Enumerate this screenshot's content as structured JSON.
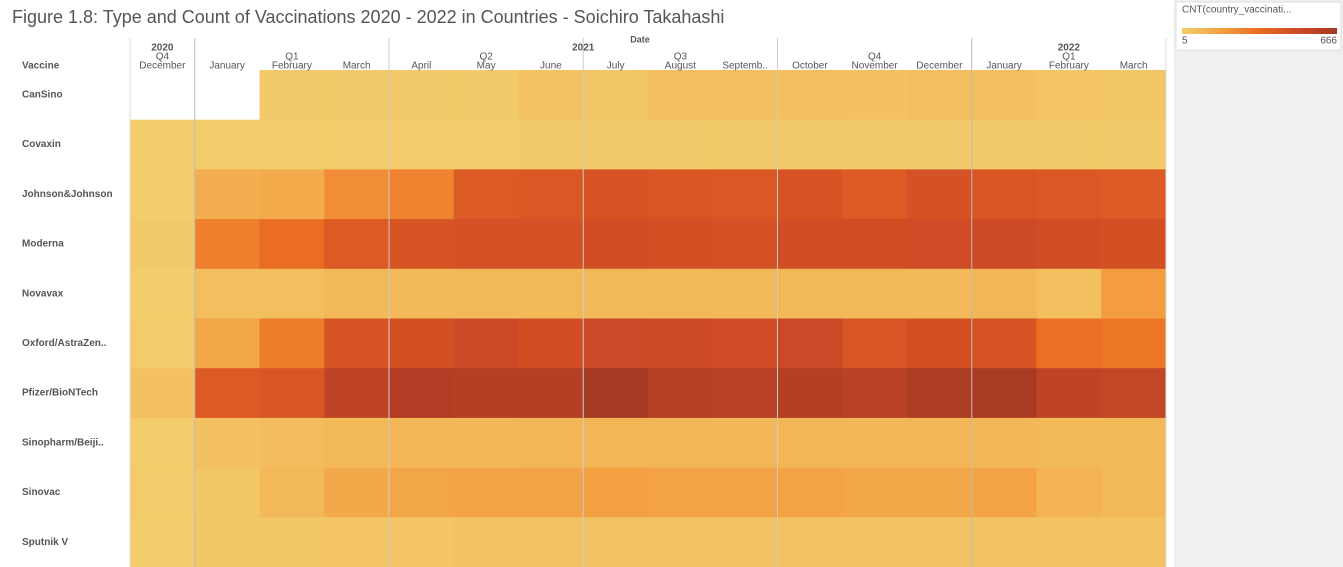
{
  "chart_data": {
    "type": "heatmap",
    "title": "Figure 1.8: Type and Count of Vaccinations 2020 - 2022  in Countries - Soichiro Takahashi",
    "x_label": "Date",
    "y_label": "Vaccine",
    "x_groups": [
      {
        "year": "2020",
        "quarters": [
          {
            "quarter": "Q4",
            "months": [
              "December"
            ]
          }
        ]
      },
      {
        "year": "2021",
        "quarters": [
          {
            "quarter": "Q1",
            "months": [
              "January",
              "February",
              "March"
            ]
          },
          {
            "quarter": "Q2",
            "months": [
              "April",
              "May",
              "June"
            ]
          },
          {
            "quarter": "Q3",
            "months": [
              "July",
              "August",
              "Septemb.."
            ]
          },
          {
            "quarter": "Q4",
            "months": [
              "October",
              "November",
              "December"
            ]
          }
        ]
      },
      {
        "year": "2022",
        "quarters": [
          {
            "quarter": "Q1",
            "months": [
              "January",
              "February",
              "March"
            ]
          }
        ]
      }
    ],
    "y_categories": [
      "CanSino",
      "Covaxin",
      "Johnson&Johnson",
      "Moderna",
      "Novavax",
      "Oxford/AstraZen..",
      "Pfizer/BioNTech",
      "Sinopharm/Beiji..",
      "Sinovac",
      "Sputnik V"
    ],
    "values": [
      [
        null,
        null,
        15,
        15,
        15,
        15,
        40,
        30,
        60,
        60,
        55,
        50,
        60,
        55,
        35,
        30
      ],
      [
        5,
        10,
        10,
        12,
        12,
        14,
        15,
        15,
        16,
        16,
        16,
        16,
        16,
        16,
        16,
        16
      ],
      [
        10,
        120,
        130,
        230,
        260,
        420,
        430,
        450,
        440,
        430,
        450,
        420,
        460,
        440,
        430,
        420
      ],
      [
        15,
        270,
        330,
        420,
        450,
        460,
        460,
        480,
        470,
        460,
        480,
        480,
        490,
        500,
        480,
        470
      ],
      [
        10,
        60,
        60,
        80,
        80,
        80,
        80,
        80,
        80,
        80,
        80,
        80,
        80,
        90,
        60,
        180
      ],
      [
        12,
        150,
        280,
        450,
        470,
        500,
        480,
        510,
        500,
        490,
        510,
        440,
        470,
        450,
        320,
        300
      ],
      [
        50,
        420,
        440,
        560,
        610,
        600,
        600,
        650,
        590,
        580,
        600,
        580,
        630,
        640,
        560,
        540
      ],
      [
        10,
        50,
        65,
        80,
        85,
        85,
        90,
        90,
        90,
        90,
        90,
        90,
        90,
        85,
        80,
        80
      ],
      [
        12,
        30,
        80,
        140,
        150,
        160,
        160,
        170,
        160,
        160,
        160,
        150,
        150,
        160,
        100,
        80
      ],
      [
        10,
        30,
        30,
        35,
        35,
        40,
        40,
        40,
        40,
        40,
        40,
        40,
        40,
        40,
        40,
        40
      ]
    ],
    "legend_title": "CNT(country_vaccinati...",
    "clim": [
      5,
      666
    ],
    "colors": [
      "#f3cd6c",
      "#f3a042",
      "#eb6b20",
      "#cd4a26",
      "#a33823"
    ]
  }
}
